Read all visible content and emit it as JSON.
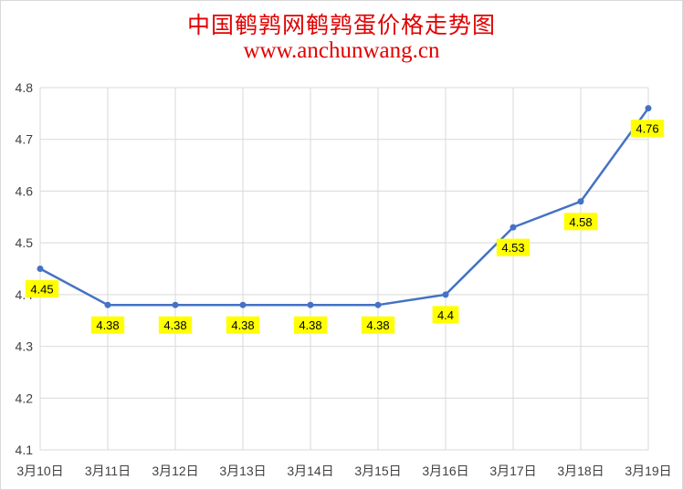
{
  "chart_data": {
    "type": "line",
    "title": "中国鹌鹑网鹌鹑蛋价格走势图",
    "subtitle": "www.anchunwang.cn",
    "categories": [
      "3月10日",
      "3月11日",
      "3月12日",
      "3月13日",
      "3月14日",
      "3月15日",
      "3月16日",
      "3月17日",
      "3月18日",
      "3月19日"
    ],
    "series": [
      {
        "values": [
          4.45,
          4.38,
          4.38,
          4.38,
          4.38,
          4.38,
          4.4,
          4.53,
          4.58,
          4.76
        ]
      }
    ],
    "data_labels": [
      "4.45",
      "4.38",
      "4.38",
      "4.38",
      "4.38",
      "4.38",
      "4.4",
      "4.53",
      "4.58",
      "4.76"
    ],
    "ylim": [
      4.1,
      4.8
    ],
    "yticks": [
      "4.1",
      "4.2",
      "4.3",
      "4.4",
      "4.5",
      "4.6",
      "4.7",
      "4.8"
    ],
    "xlabel": "",
    "ylabel": "",
    "grid": true,
    "legend": "none",
    "colors": {
      "line": "#4472c4",
      "label_bg": "#ffff00",
      "title": "#e00000",
      "grid": "#d9d9d9"
    }
  }
}
